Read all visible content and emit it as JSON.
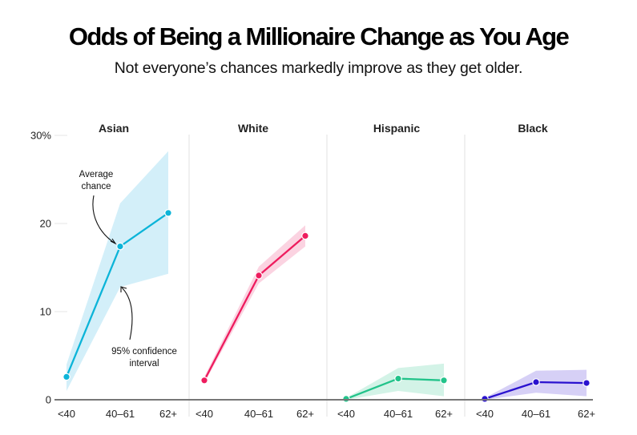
{
  "title": "Odds of Being a Millionaire Change as You Age",
  "subtitle": "Not everyone’s chances markedly improve as they get older.",
  "chart_data": {
    "type": "line",
    "title": "Odds of Being a Millionaire Change as You Age",
    "subtitle": "Not everyone’s chances markedly improve as they get older.",
    "xlabel": "",
    "ylabel": "",
    "categories": [
      "<40",
      "40–61",
      "62+"
    ],
    "ylim": [
      0,
      30
    ],
    "yticks": [
      0,
      10,
      20,
      30
    ],
    "ytick_labels": [
      "0",
      "10",
      "20",
      "30%"
    ],
    "grid": false,
    "legend": "none",
    "panels": [
      {
        "name": "Asian",
        "color": "#0cb4d8",
        "band_color": "#d3eff9",
        "values": [
          2.6,
          17.4,
          21.2
        ],
        "ci_low": [
          1.0,
          12.8,
          14.3
        ],
        "ci_high": [
          4.0,
          22.3,
          28.2
        ]
      },
      {
        "name": "White",
        "color": "#ee1c5e",
        "band_color": "#fbd3e1",
        "values": [
          2.2,
          14.1,
          18.6
        ],
        "ci_low": [
          1.9,
          13.2,
          17.4
        ],
        "ci_high": [
          2.6,
          15.1,
          19.8
        ]
      },
      {
        "name": "Hispanic",
        "color": "#22c38a",
        "band_color": "#d3f3e7",
        "values": [
          0.1,
          2.4,
          2.2
        ],
        "ci_low": [
          0.0,
          1.0,
          0.4
        ],
        "ci_high": [
          0.2,
          3.6,
          4.1
        ]
      },
      {
        "name": "Black",
        "color": "#2a12cf",
        "band_color": "#d6d0f6",
        "values": [
          0.1,
          2.0,
          1.9
        ],
        "ci_low": [
          0.0,
          0.8,
          0.4
        ],
        "ci_high": [
          0.2,
          3.3,
          3.4
        ]
      }
    ],
    "annotations": [
      {
        "text": [
          "Average",
          "chance"
        ],
        "points_to": "Asian 40–61 average"
      },
      {
        "text": [
          "95% confidence",
          "interval"
        ],
        "points_to": "Asian 40–61 confidence interval"
      }
    ]
  }
}
